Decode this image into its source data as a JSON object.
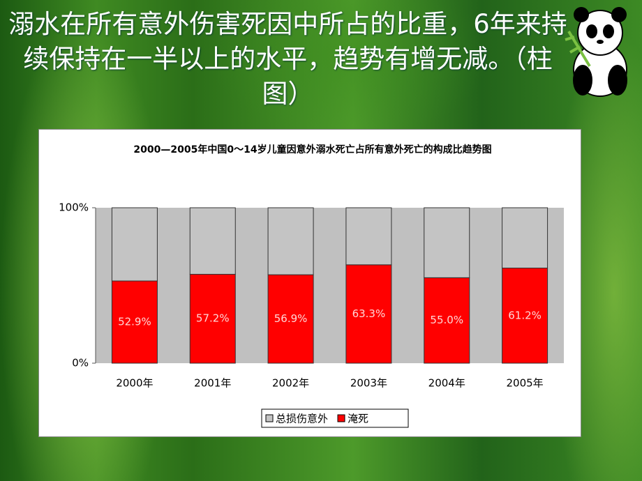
{
  "slide": {
    "heading": "溺水在所有意外伤害死因中所占的比重，6年来持续保持在一半以上的水平，趋势有增无减。（柱图）"
  },
  "chart_data": {
    "type": "stacked_bar",
    "title": "2000—2005年中国0～14岁儿童因意外溺水死亡占所有意外死亡的构成比趋势图",
    "categories": [
      "2000年",
      "2001年",
      "2002年",
      "2003年",
      "2004年",
      "2005年"
    ],
    "series": [
      {
        "name": "总损伤意外",
        "color": "#c4c4c4",
        "values": [
          47.1,
          42.8,
          43.1,
          36.7,
          45.0,
          38.8
        ]
      },
      {
        "name": "淹死",
        "color": "#ff0000",
        "values": [
          52.9,
          57.2,
          56.9,
          63.3,
          55.0,
          61.2
        ],
        "value_labels": [
          "52.9%",
          "57.2%",
          "56.9%",
          "63.3%",
          "55.0%",
          "61.2%"
        ]
      }
    ],
    "ylim": [
      0,
      100
    ],
    "yticks": [
      {
        "value": 0,
        "label": "0%"
      },
      {
        "value": 100,
        "label": "100%"
      }
    ],
    "legend": "bottom"
  }
}
